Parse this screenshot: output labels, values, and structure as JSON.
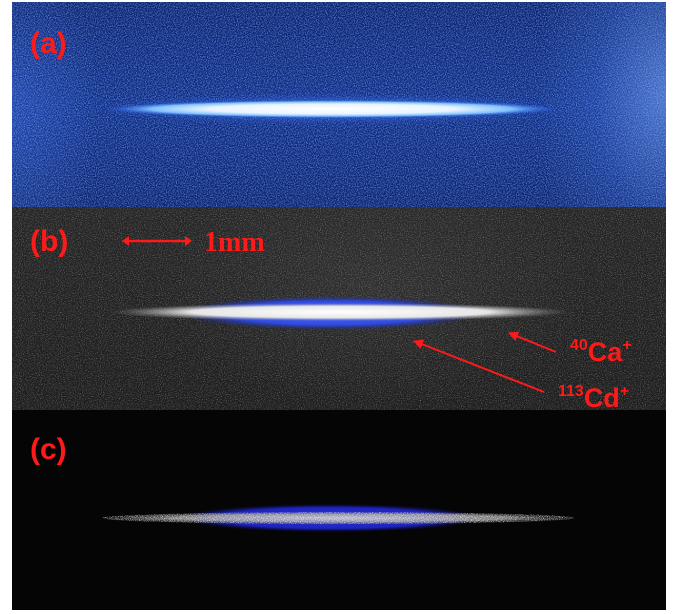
{
  "panels": {
    "a": {
      "label": "(a)"
    },
    "b": {
      "label": "(b)",
      "scale_bar_text": "1mm"
    },
    "c": {
      "label": "(c)"
    }
  },
  "ions": {
    "calcium": {
      "mass_number": "40",
      "symbol": "Ca",
      "charge": "+"
    },
    "cadmium": {
      "mass_number": "113",
      "symbol": "Cd",
      "charge": "+"
    }
  },
  "colors": {
    "annotation": "#ff1a1a",
    "panel_a_background": "#0a2a86",
    "panel_b_background": "#222222",
    "panel_c_background": "#050505",
    "calcium_fluorescence": "#ffffff",
    "cadmium_fluorescence": "#3355ff"
  }
}
